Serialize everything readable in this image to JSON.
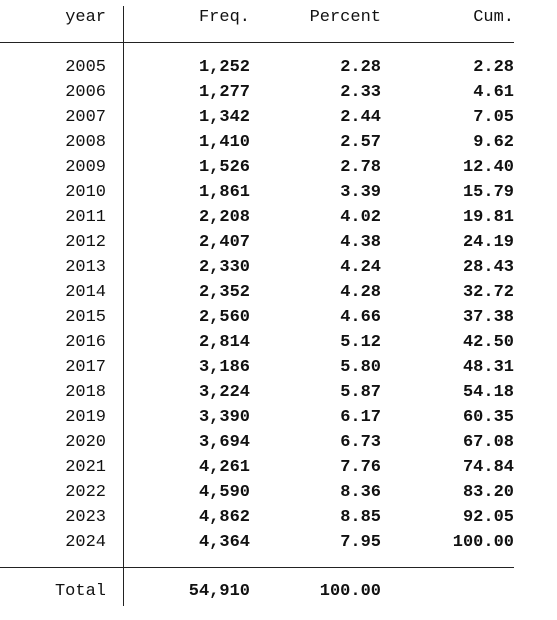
{
  "table": {
    "header": [
      "year",
      "Freq.",
      "Percent",
      "Cum."
    ],
    "rows": [
      [
        "2005",
        "1,252",
        "2.28",
        "2.28"
      ],
      [
        "2006",
        "1,277",
        "2.33",
        "4.61"
      ],
      [
        "2007",
        "1,342",
        "2.44",
        "7.05"
      ],
      [
        "2008",
        "1,410",
        "2.57",
        "9.62"
      ],
      [
        "2009",
        "1,526",
        "2.78",
        "12.40"
      ],
      [
        "2010",
        "1,861",
        "3.39",
        "15.79"
      ],
      [
        "2011",
        "2,208",
        "4.02",
        "19.81"
      ],
      [
        "2012",
        "2,407",
        "4.38",
        "24.19"
      ],
      [
        "2013",
        "2,330",
        "4.24",
        "28.43"
      ],
      [
        "2014",
        "2,352",
        "4.28",
        "32.72"
      ],
      [
        "2015",
        "2,560",
        "4.66",
        "37.38"
      ],
      [
        "2016",
        "2,814",
        "5.12",
        "42.50"
      ],
      [
        "2017",
        "3,186",
        "5.80",
        "48.31"
      ],
      [
        "2018",
        "3,224",
        "5.87",
        "54.18"
      ],
      [
        "2019",
        "3,390",
        "6.17",
        "60.35"
      ],
      [
        "2020",
        "3,694",
        "6.73",
        "67.08"
      ],
      [
        "2021",
        "4,261",
        "7.76",
        "74.84"
      ],
      [
        "2022",
        "4,590",
        "8.36",
        "83.20"
      ],
      [
        "2023",
        "4,862",
        "8.85",
        "92.05"
      ],
      [
        "2024",
        "4,364",
        "7.95",
        "100.00"
      ]
    ],
    "total": [
      "Total",
      "54,910",
      "100.00"
    ]
  }
}
